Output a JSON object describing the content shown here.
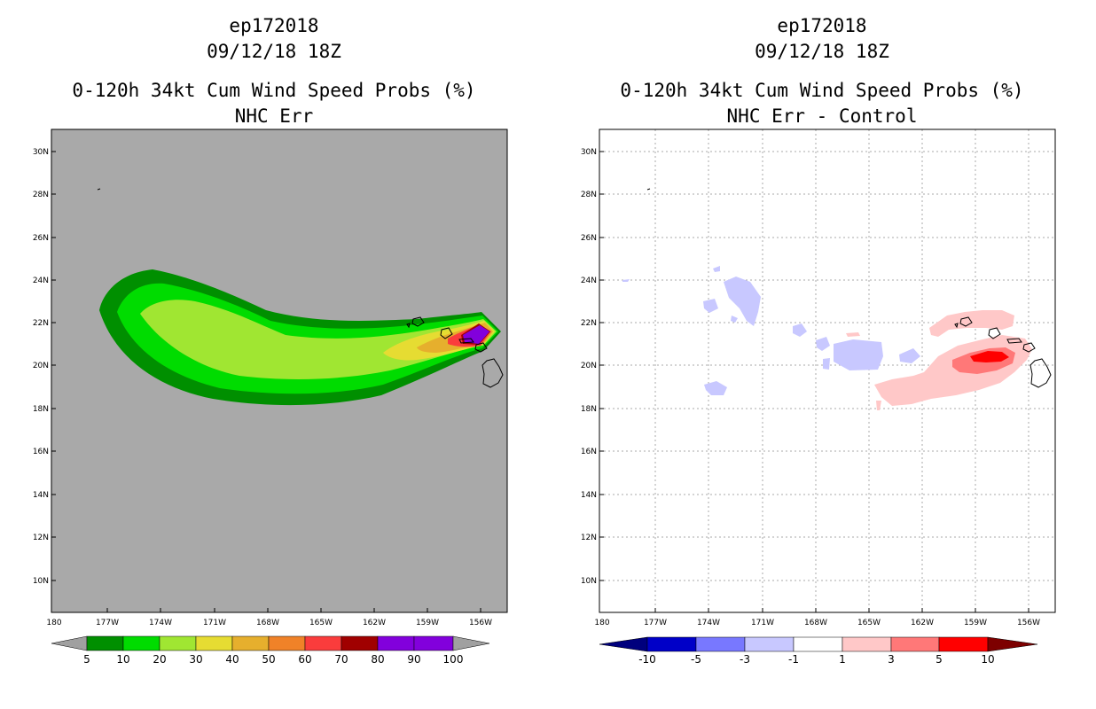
{
  "left": {
    "title_line1": "ep172018",
    "title_line2": "09/12/18 18Z",
    "title_line3": "0-120h 34kt Cum Wind Speed Probs (%)",
    "title_line4": "NHC Err",
    "colorbar": {
      "labels": [
        "5",
        "10",
        "20",
        "30",
        "40",
        "50",
        "60",
        "70",
        "80",
        "90",
        "100"
      ],
      "colors": [
        "#008f00",
        "#00dc00",
        "#a0e632",
        "#e6dc32",
        "#e6af2d",
        "#f08228",
        "#fa3c3c",
        "#a00000",
        "#8200dc"
      ],
      "under_color": "#a0a0a0",
      "over_color": "#a0a0a0"
    }
  },
  "right": {
    "title_line1": "ep172018",
    "title_line2": "09/12/18 18Z",
    "title_line3": "0-120h 34kt Cum Wind Speed Probs (%)",
    "title_line4": "NHC Err - Control",
    "colorbar": {
      "labels": [
        "-10",
        "-5",
        "-3",
        "-1",
        "1",
        "3",
        "5",
        "10"
      ],
      "colors": [
        "#0000c8",
        "#0000ff",
        "#7878ff",
        "#c8c8ff",
        "#ffffff",
        "#ffc8c8",
        "#ff7878",
        "#ff0000",
        "#c80000"
      ],
      "under_color": "#00007d",
      "over_color": "#7d0000"
    }
  },
  "map": {
    "lat_labels": [
      "30N",
      "28N",
      "26N",
      "24N",
      "22N",
      "20N",
      "18N",
      "16N",
      "14N",
      "12N",
      "10N"
    ],
    "lon_labels": [
      "180",
      "177W",
      "174W",
      "171W",
      "168W",
      "165W",
      "162W",
      "159W",
      "156W"
    ],
    "background_color": "#a9a9a9"
  }
}
